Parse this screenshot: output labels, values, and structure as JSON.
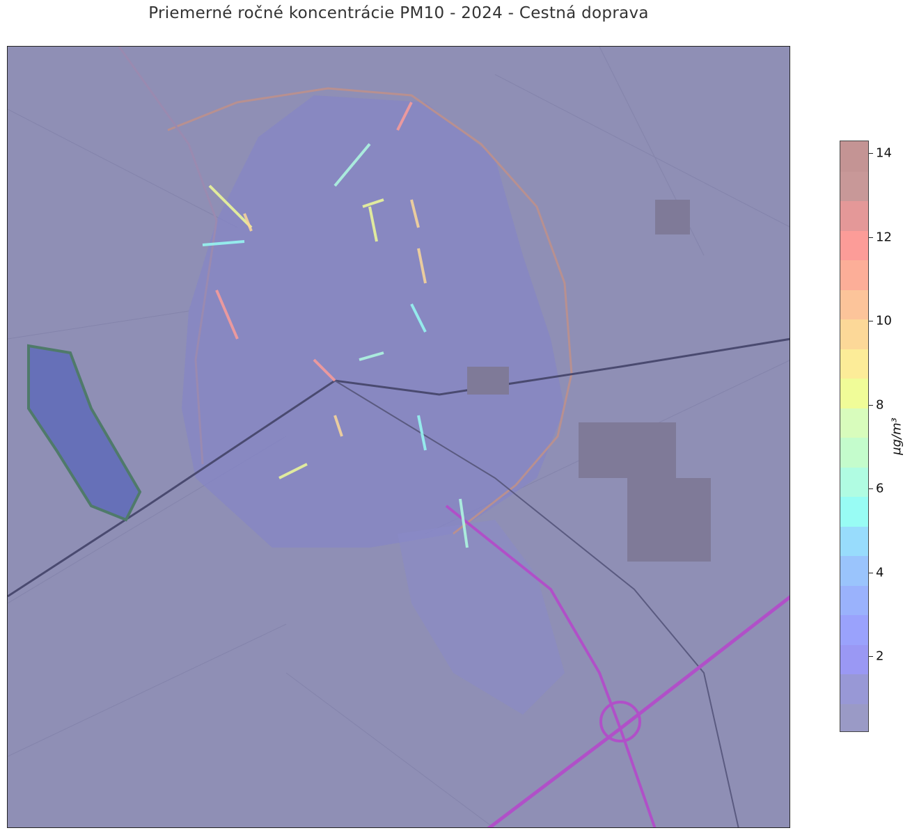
{
  "title": "Priemerné ročné koncentrácie PM10 - 2024 - Cestná doprava",
  "colorbar": {
    "label": "μg/m³",
    "ticks": [
      2,
      4,
      6,
      8,
      10,
      12,
      14
    ],
    "range": [
      0.2,
      14.3
    ],
    "colors": [
      "#9a9ac6",
      "#9898d6",
      "#9a98f4",
      "#9aa2fc",
      "#9ab2fc",
      "#9ac4fc",
      "#98dcfc",
      "#98fcf4",
      "#b0fce2",
      "#c4fccc",
      "#d8fcbc",
      "#f0fc98",
      "#fcec98",
      "#fcd898",
      "#fcc49a",
      "#fcae98",
      "#fc9c98",
      "#e49898",
      "#c89898",
      "#c49494"
    ]
  },
  "map": {
    "base_color": "#8f8fb5",
    "hotspot_colors": [
      "#f0fc98",
      "#fcd898",
      "#98fcf4",
      "#b0fce2",
      "#fc9c98"
    ]
  }
}
